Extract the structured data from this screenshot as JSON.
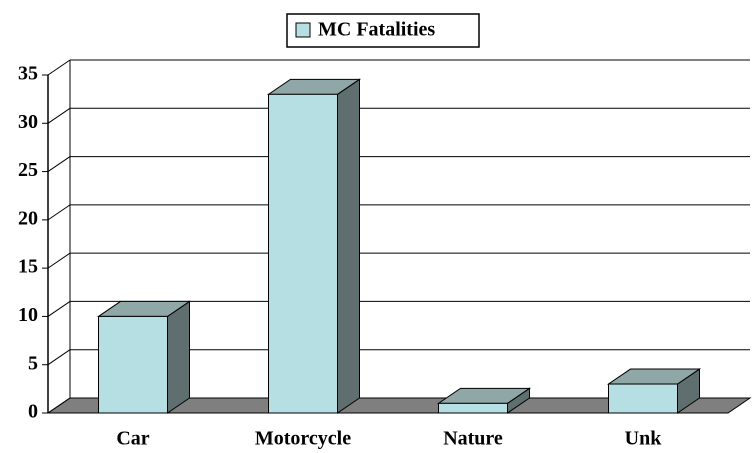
{
  "chart_data": {
    "type": "bar3d",
    "categories": [
      "Car",
      "Motorcycle",
      "Nature",
      "Unk"
    ],
    "series": [
      {
        "name": "MC Fatalities",
        "color": "#b5dfe3",
        "values": [
          10,
          33,
          1,
          3
        ]
      }
    ],
    "ylim": [
      0,
      35
    ],
    "yticks": [
      0,
      5,
      10,
      15,
      20,
      25,
      30,
      35
    ],
    "grid": true,
    "legend": "top"
  }
}
